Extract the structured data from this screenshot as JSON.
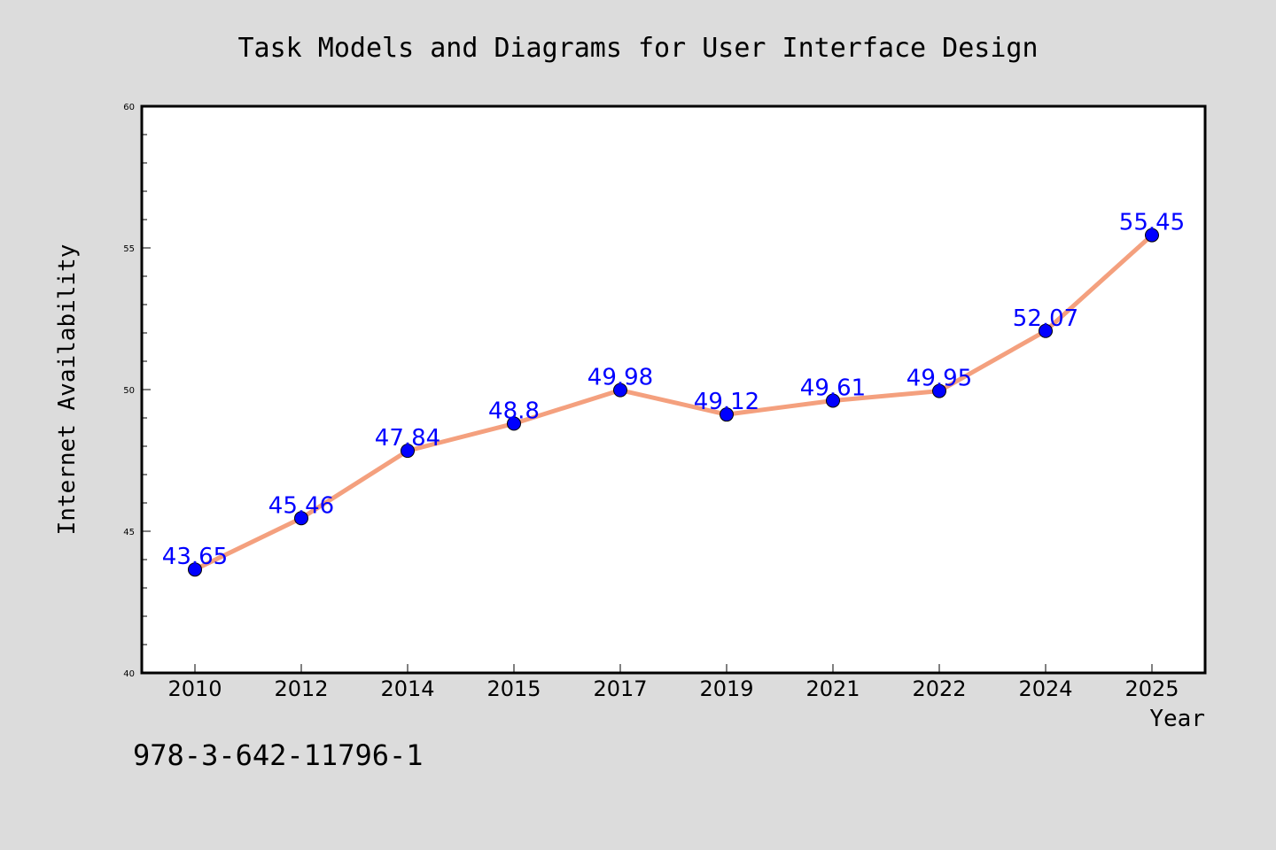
{
  "chart_data": {
    "type": "line",
    "title": "Task Models and Diagrams for User Interface Design",
    "xlabel": "Year",
    "ylabel": "Internet Availability",
    "categories": [
      "2010",
      "2012",
      "2014",
      "2015",
      "2017",
      "2019",
      "2021",
      "2022",
      "2024",
      "2025"
    ],
    "series": [
      {
        "values": [
          43.65,
          45.46,
          47.84,
          48.8,
          49.98,
          49.12,
          49.61,
          49.95,
          52.07,
          55.45
        ],
        "labels": [
          "43.65",
          "45.46",
          "47.84",
          "48.8",
          "49.98",
          "49.12",
          "49.61",
          "49.95",
          "52.07",
          "55.45"
        ]
      }
    ],
    "ylim": [
      40,
      60
    ],
    "yticks": [
      40,
      45,
      50,
      55,
      60
    ],
    "yminor_step": 1,
    "grid": false,
    "legend": "none"
  },
  "footer": {
    "text": "978-3-642-11796-1"
  },
  "colors": {
    "background": "#dcdcdc",
    "plot_background": "#ffffff",
    "line": "#f4a07e",
    "marker": "#0000ff",
    "data_label": "#0000ff",
    "axis": "#000000"
  }
}
